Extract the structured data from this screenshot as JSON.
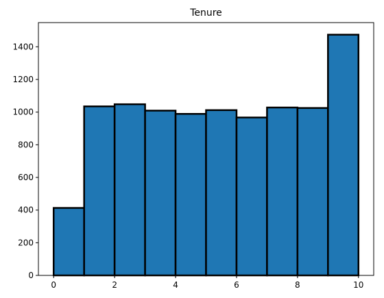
{
  "chart_data": {
    "type": "bar",
    "title": "Tenure",
    "xlabel": "",
    "ylabel": "",
    "bins": [
      {
        "start": 0,
        "end": 1,
        "count": 413
      },
      {
        "start": 1,
        "end": 2,
        "count": 1035
      },
      {
        "start": 2,
        "end": 3,
        "count": 1048
      },
      {
        "start": 3,
        "end": 4,
        "count": 1009
      },
      {
        "start": 4,
        "end": 5,
        "count": 989
      },
      {
        "start": 5,
        "end": 6,
        "count": 1012
      },
      {
        "start": 6,
        "end": 7,
        "count": 967
      },
      {
        "start": 7,
        "end": 8,
        "count": 1028
      },
      {
        "start": 8,
        "end": 9,
        "count": 1025
      },
      {
        "start": 9,
        "end": 10,
        "count": 1474
      }
    ],
    "xlim": [
      -0.5,
      10.5
    ],
    "ylim": [
      0,
      1548
    ],
    "xticks": [
      "0",
      "2",
      "4",
      "6",
      "8",
      "10"
    ],
    "yticks": [
      "0",
      "200",
      "400",
      "600",
      "800",
      "1000",
      "1200",
      "1400"
    ],
    "grid": false,
    "colors": {
      "bar_fill": "#1f77b4",
      "bar_edge": "#000000"
    }
  }
}
